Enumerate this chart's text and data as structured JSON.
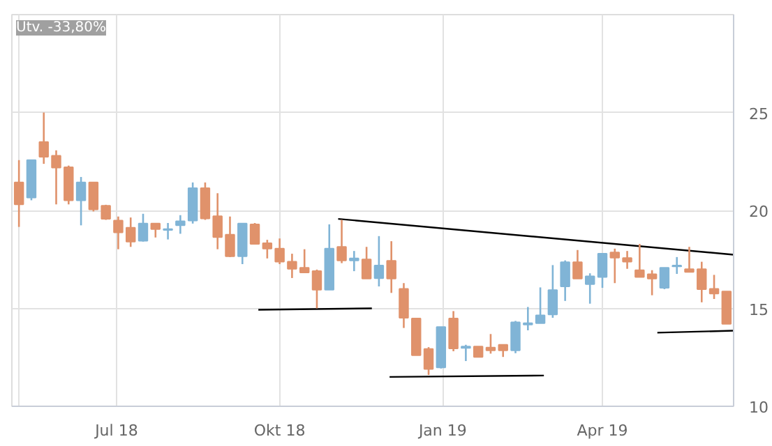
{
  "chart_data": {
    "type": "candlestick",
    "annotations": [
      "Utv. -33,80%"
    ],
    "xlim": [
      "2018-05-03",
      "2019-06-14"
    ],
    "xticks": [
      {
        "value": "2018-05-07",
        "label": null
      },
      {
        "value": "2018-07-01",
        "label": "Jul 18"
      },
      {
        "value": "2018-10-01",
        "label": "Okt 18"
      },
      {
        "value": "2019-01-01",
        "label": "Jan 19"
      },
      {
        "value": "2019-04-01",
        "label": "Apr 19"
      }
    ],
    "ylim": [
      10,
      30
    ],
    "yticks": [
      10,
      15,
      20,
      25,
      {
        "value": 30,
        "label": null
      }
    ],
    "grid": true,
    "series": [
      {
        "x": [
          "2018-05-07",
          "2018-05-14",
          "2018-05-21",
          "2018-05-28",
          "2018-06-04",
          "2018-06-11",
          "2018-06-18",
          "2018-06-25",
          "2018-07-02",
          "2018-07-09",
          "2018-07-16",
          "2018-07-23",
          "2018-07-30",
          "2018-08-06",
          "2018-08-13",
          "2018-08-20",
          "2018-08-27",
          "2018-09-03",
          "2018-09-10",
          "2018-09-17",
          "2018-09-24",
          "2018-10-01",
          "2018-10-08",
          "2018-10-15",
          "2018-10-22",
          "2018-10-29",
          "2018-11-05",
          "2018-11-12",
          "2018-11-19",
          "2018-11-26",
          "2018-12-03",
          "2018-12-10",
          "2018-12-17",
          "2018-12-24",
          "2018-12-31",
          "2019-01-07",
          "2019-01-14",
          "2019-01-21",
          "2019-01-28",
          "2019-02-04",
          "2019-02-11",
          "2019-02-18",
          "2019-02-25",
          "2019-03-04",
          "2019-03-11",
          "2019-03-18",
          "2019-03-25",
          "2019-04-01",
          "2019-04-08",
          "2019-04-15",
          "2019-04-22",
          "2019-04-29",
          "2019-05-06",
          "2019-05-13",
          "2019-05-20",
          "2019-05-27",
          "2019-06-03",
          "2019-06-10"
        ],
        "ohlc": [
          [
            21.43,
            22.57,
            19.16,
            20.31
          ],
          [
            20.66,
            22.57,
            20.52,
            22.57
          ],
          [
            23.5,
            25.0,
            22.38,
            22.74
          ],
          [
            22.79,
            23.07,
            20.31,
            22.19
          ],
          [
            22.21,
            22.29,
            20.31,
            20.52
          ],
          [
            20.52,
            21.71,
            19.24,
            21.43
          ],
          [
            21.43,
            21.43,
            19.95,
            20.05
          ],
          [
            20.24,
            20.29,
            19.52,
            19.57
          ],
          [
            19.48,
            19.69,
            18.02,
            18.88
          ],
          [
            19.12,
            19.64,
            18.14,
            18.41
          ],
          [
            18.45,
            19.83,
            18.41,
            19.33
          ],
          [
            19.33,
            19.33,
            18.62,
            19.05
          ],
          [
            19.0,
            19.36,
            18.52,
            19.05
          ],
          [
            19.24,
            19.76,
            18.81,
            19.45
          ],
          [
            19.48,
            21.43,
            19.33,
            21.14
          ],
          [
            21.14,
            21.43,
            19.52,
            19.59
          ],
          [
            19.71,
            20.88,
            18.02,
            18.64
          ],
          [
            18.76,
            19.69,
            17.62,
            17.66
          ],
          [
            17.66,
            19.36,
            17.26,
            19.33
          ],
          [
            19.29,
            19.36,
            18.29,
            18.29
          ],
          [
            18.33,
            18.5,
            17.55,
            18.05
          ],
          [
            18.05,
            18.57,
            17.26,
            17.38
          ],
          [
            17.38,
            17.79,
            16.55,
            17.02
          ],
          [
            17.07,
            18.02,
            16.83,
            16.83
          ],
          [
            16.9,
            16.98,
            15.0,
            15.95
          ],
          [
            15.95,
            19.29,
            15.95,
            18.05
          ],
          [
            18.14,
            19.52,
            17.31,
            17.45
          ],
          [
            17.45,
            17.93,
            16.9,
            17.55
          ],
          [
            17.5,
            18.14,
            16.52,
            16.52
          ],
          [
            16.54,
            18.69,
            16.12,
            17.19
          ],
          [
            17.43,
            18.43,
            15.79,
            16.52
          ],
          [
            16.0,
            16.29,
            14.0,
            14.52
          ],
          [
            14.48,
            14.48,
            12.61,
            12.61
          ],
          [
            12.93,
            13.02,
            11.6,
            11.9
          ],
          [
            11.98,
            14.05,
            11.93,
            14.05
          ],
          [
            14.48,
            14.86,
            12.81,
            12.95
          ],
          [
            12.98,
            13.14,
            12.31,
            13.05
          ],
          [
            13.05,
            13.05,
            12.52,
            12.52
          ],
          [
            13.0,
            13.69,
            12.69,
            12.86
          ],
          [
            13.14,
            13.14,
            12.52,
            12.86
          ],
          [
            12.86,
            14.36,
            12.71,
            14.29
          ],
          [
            14.17,
            15.07,
            13.88,
            14.24
          ],
          [
            14.24,
            16.07,
            14.24,
            14.64
          ],
          [
            14.69,
            17.21,
            14.52,
            15.93
          ],
          [
            16.12,
            17.45,
            15.38,
            17.36
          ],
          [
            17.36,
            17.98,
            16.52,
            16.52
          ],
          [
            16.24,
            16.79,
            15.24,
            16.64
          ],
          [
            16.6,
            17.79,
            16.05,
            17.79
          ],
          [
            17.86,
            18.05,
            16.29,
            17.59
          ],
          [
            17.57,
            17.93,
            17.02,
            17.38
          ],
          [
            16.95,
            18.29,
            16.6,
            16.6
          ],
          [
            16.74,
            16.95,
            15.67,
            16.52
          ],
          [
            16.05,
            17.07,
            15.98,
            17.07
          ],
          [
            17.14,
            17.62,
            16.76,
            17.19
          ],
          [
            17.0,
            18.14,
            16.86,
            16.86
          ],
          [
            17.0,
            17.38,
            15.31,
            15.98
          ],
          [
            16.0,
            16.71,
            15.48,
            15.76
          ],
          [
            15.86,
            15.86,
            14.21,
            14.21
          ]
        ],
        "colors": [
          "#e0926b",
          "#80b4d6",
          "#e0926b",
          "#e0926b",
          "#e0926b",
          "#80b4d6",
          "#e0926b",
          "#e0926b",
          "#e0926b",
          "#e0926b",
          "#80b4d6",
          "#e0926b",
          "#80b4d6",
          "#80b4d6",
          "#80b4d6",
          "#e0926b",
          "#e0926b",
          "#e0926b",
          "#80b4d6",
          "#e0926b",
          "#e0926b",
          "#e0926b",
          "#e0926b",
          "#e0926b",
          "#e0926b",
          "#80b4d6",
          "#e0926b",
          "#80b4d6",
          "#e0926b",
          "#80b4d6",
          "#e0926b",
          "#e0926b",
          "#e0926b",
          "#e0926b",
          "#80b4d6",
          "#e0926b",
          "#80b4d6",
          "#e0926b",
          "#e0926b",
          "#e0926b",
          "#80b4d6",
          "#80b4d6",
          "#80b4d6",
          "#80b4d6",
          "#80b4d6",
          "#e0926b",
          "#80b4d6",
          "#80b4d6",
          "#e0926b",
          "#e0926b",
          "#e0926b",
          "#e0926b",
          "#80b4d6",
          "#80b4d6",
          "#e0926b",
          "#e0926b",
          "#e0926b",
          "#e0926b"
        ]
      },
      {
        "type": "line",
        "x": [
          "2018-11-03",
          "2019-06-14"
        ],
        "values": [
          19.57,
          17.74
        ],
        "color": "#000000"
      },
      {
        "type": "line",
        "x": [
          "2018-09-19",
          "2018-11-22"
        ],
        "values": [
          14.93,
          15.0
        ],
        "color": "#000000"
      },
      {
        "type": "line",
        "x": [
          "2018-12-02",
          "2019-02-27"
        ],
        "values": [
          11.5,
          11.57
        ],
        "color": "#000000"
      },
      {
        "type": "line",
        "x": [
          "2019-05-02",
          "2019-06-14"
        ],
        "values": [
          13.76,
          13.86
        ],
        "color": "#000000"
      }
    ]
  }
}
